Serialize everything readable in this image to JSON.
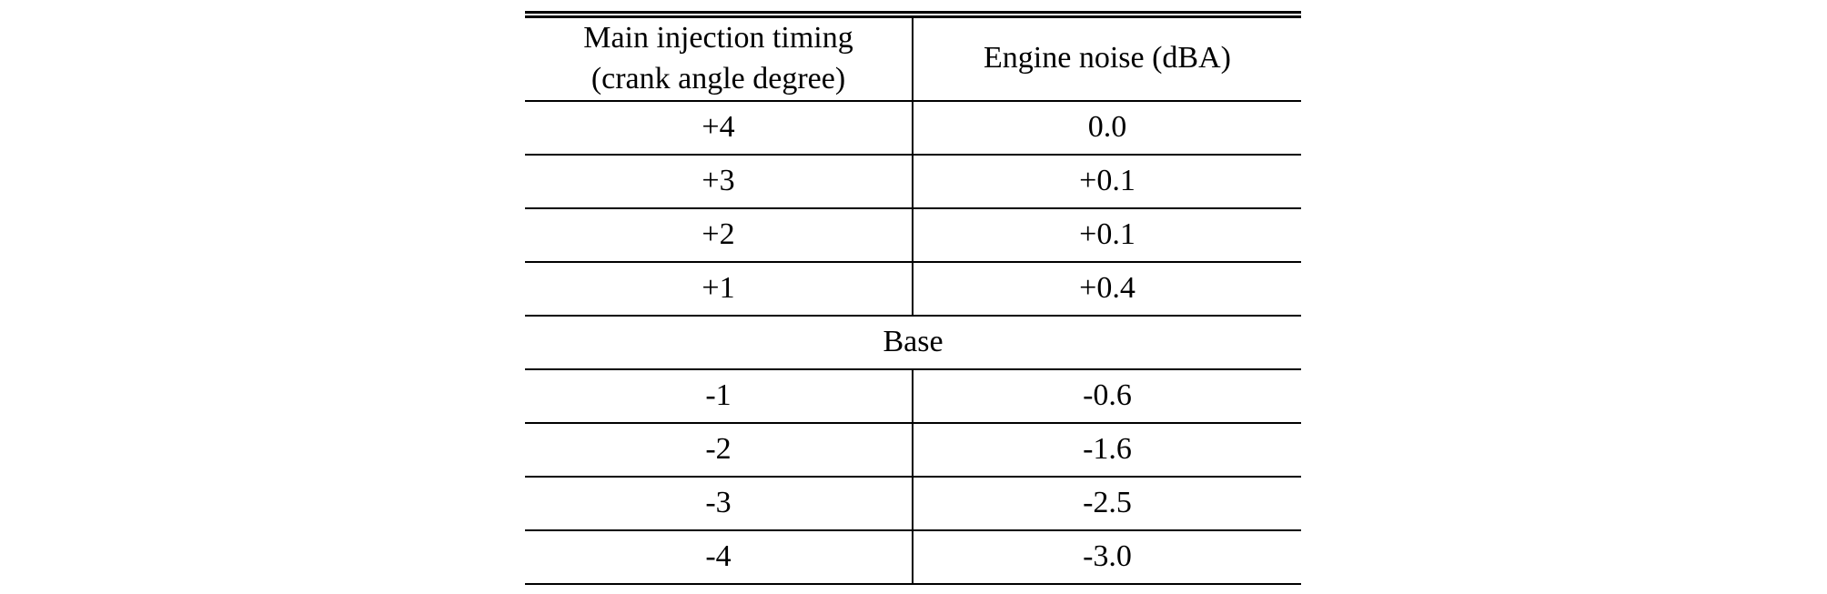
{
  "chart_data": {
    "type": "table",
    "title": "",
    "columns": [
      "Main injection timing (crank angle degree)",
      "Engine noise (dBA)"
    ],
    "rows_advanced": [
      {
        "timing": "+4",
        "noise": "0.0"
      },
      {
        "timing": "+3",
        "noise": "+0.1"
      },
      {
        "timing": "+2",
        "noise": "+0.1"
      },
      {
        "timing": "+1",
        "noise": "+0.4"
      }
    ],
    "base_row_label": "Base",
    "rows_retarded": [
      {
        "timing": "-1",
        "noise": "-0.6"
      },
      {
        "timing": "-2",
        "noise": "-1.6"
      },
      {
        "timing": "-3",
        "noise": "-2.5"
      },
      {
        "timing": "-4",
        "noise": "-3.0"
      }
    ],
    "layout": "two-column ruled table, double top rule, single bottom rule, Base row merged across both columns"
  },
  "table": {
    "header": {
      "timing_line1": "Main injection timing",
      "timing_line2": "(crank angle degree)",
      "noise": "Engine noise (dBA)"
    }
  },
  "colors": {
    "background": "#ffffff",
    "text": "#000000",
    "rule": "#000000"
  }
}
